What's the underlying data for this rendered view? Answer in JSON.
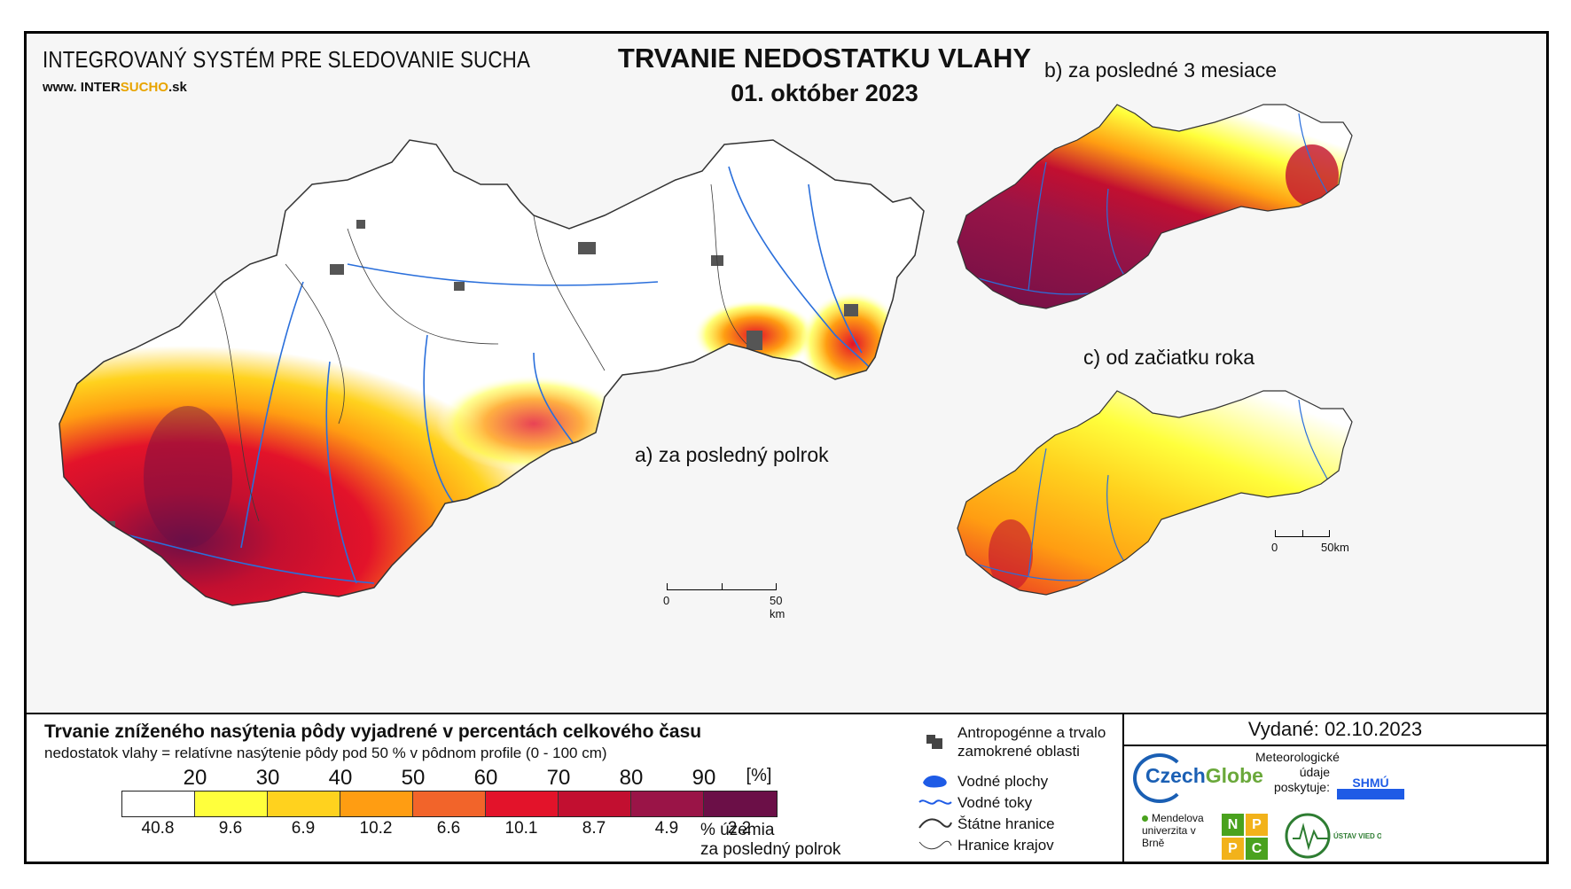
{
  "header": {
    "system_title": "INTEGROVANÝ SYSTÉM PRE SLEDOVANIE SUCHA",
    "url_prefix": "www. INTER",
    "url_highlight": "SUCHO",
    "url_suffix": ".sk",
    "main_title": "TRVANIE NEDOSTATKU VLAHY",
    "date": "01. október 2023"
  },
  "panels": {
    "a_label": "a) za posledný polrok",
    "b_label": "b) za posledné 3 mesiace",
    "c_label": "c) od začiatku roka"
  },
  "scalebars": {
    "main": {
      "start": "0",
      "end": "50 km"
    },
    "small": {
      "start": "0",
      "end": "50km"
    }
  },
  "legend": {
    "title": "Trvanie zníženého nasýtenia pôdy vyjadrené v percentách celkového času",
    "subtitle": "nedostatok vlahy = relatívne nasýtenie pôdy pod 50 % v pôdnom profile (0 - 100 cm)",
    "thresholds": [
      "20",
      "30",
      "40",
      "50",
      "60",
      "70",
      "80",
      "90",
      "[%]"
    ],
    "classes": [
      {
        "color": "#ffffff",
        "pct": "40.8"
      },
      {
        "color": "#ffff3c",
        "pct": "9.6"
      },
      {
        "color": "#ffd21e",
        "pct": "6.9"
      },
      {
        "color": "#ff9d12",
        "pct": "10.2"
      },
      {
        "color": "#f2642a",
        "pct": "6.6"
      },
      {
        "color": "#e3132a",
        "pct": "10.1"
      },
      {
        "color": "#c20f30",
        "pct": "8.7"
      },
      {
        "color": "#9a1447",
        "pct": "4.9"
      },
      {
        "color": "#6b0f47",
        "pct": "2.2"
      }
    ],
    "unit_line1": "% územia",
    "unit_line2": "za posledný polrok"
  },
  "symbols": [
    {
      "icon": "urban-area-icon",
      "label": "Antropogénne a trvalo zamokrené oblasti"
    },
    {
      "icon": "water-body-icon",
      "label": "Vodné plochy"
    },
    {
      "icon": "river-icon",
      "label": "Vodné toky"
    },
    {
      "icon": "state-border-icon",
      "label": "Štátne hranice"
    },
    {
      "icon": "region-border-icon",
      "label": "Hranice krajov"
    }
  ],
  "issue": {
    "issued": "Vydané: 02.10.2023",
    "czechglobe_a": "Czech",
    "czechglobe_b": "Globe",
    "meteo": "Meteorologické údaje poskytuje:",
    "shmu": "SHMÚ",
    "mendel": "Mendelova univerzita v Brně",
    "nppc": [
      "N",
      "P",
      "P",
      "C"
    ],
    "uvz": "ÚSTAV VIED O ZEMI"
  }
}
